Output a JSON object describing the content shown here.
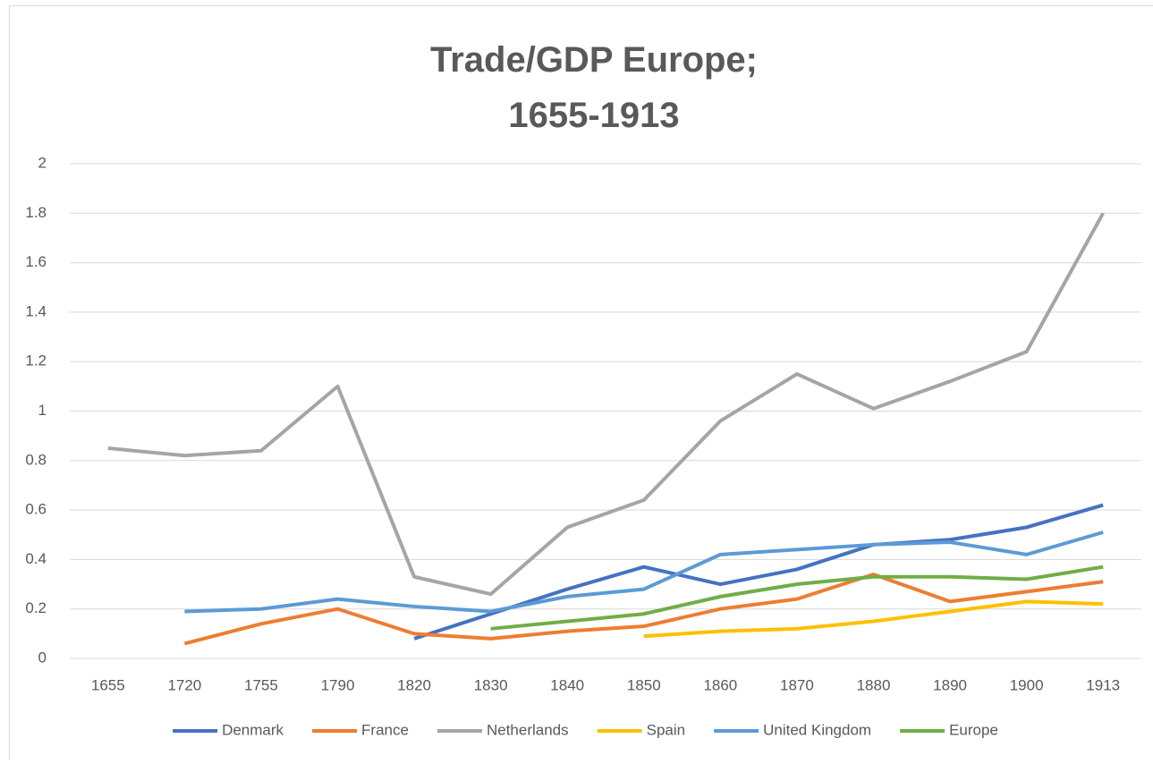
{
  "chart_data": {
    "type": "line",
    "title": "Trade/GDP Europe; 1655-1913",
    "categories": [
      "1655",
      "1720",
      "1755",
      "1790",
      "1820",
      "1830",
      "1840",
      "1850",
      "1860",
      "1870",
      "1880",
      "1890",
      "1900",
      "1913"
    ],
    "series": [
      {
        "name": "Denmark",
        "color": "#4472c4",
        "values": [
          null,
          null,
          null,
          null,
          0.08,
          0.18,
          0.28,
          0.37,
          0.3,
          0.36,
          0.46,
          0.48,
          0.53,
          0.62
        ]
      },
      {
        "name": "France",
        "color": "#ed7d31",
        "values": [
          null,
          0.06,
          0.14,
          0.2,
          0.1,
          0.08,
          0.11,
          0.13,
          0.2,
          0.24,
          0.34,
          0.23,
          0.27,
          0.31
        ]
      },
      {
        "name": "Netherlands",
        "color": "#a5a5a5",
        "values": [
          0.85,
          0.82,
          0.84,
          1.1,
          0.33,
          0.26,
          0.53,
          0.64,
          0.96,
          1.15,
          1.01,
          1.12,
          1.24,
          1.8
        ]
      },
      {
        "name": "Spain",
        "color": "#ffc000",
        "values": [
          null,
          null,
          null,
          null,
          null,
          null,
          null,
          0.09,
          0.11,
          0.12,
          0.15,
          0.19,
          0.23,
          0.22
        ]
      },
      {
        "name": "United Kingdom",
        "color": "#5b9bd5",
        "values": [
          null,
          0.19,
          0.2,
          0.24,
          0.21,
          0.19,
          0.25,
          0.28,
          0.42,
          0.44,
          0.46,
          0.47,
          0.42,
          0.51
        ]
      },
      {
        "name": "Europe",
        "color": "#70ad47",
        "values": [
          null,
          null,
          null,
          null,
          null,
          0.12,
          0.15,
          0.18,
          0.25,
          0.3,
          0.33,
          0.33,
          0.32,
          0.37
        ]
      }
    ],
    "ylim": [
      0,
      2
    ],
    "yticks": [
      0,
      0.2,
      0.4,
      0.6,
      0.8,
      1,
      1.2,
      1.4,
      1.6,
      1.8,
      2
    ],
    "grid": true,
    "legend": "bottom"
  }
}
